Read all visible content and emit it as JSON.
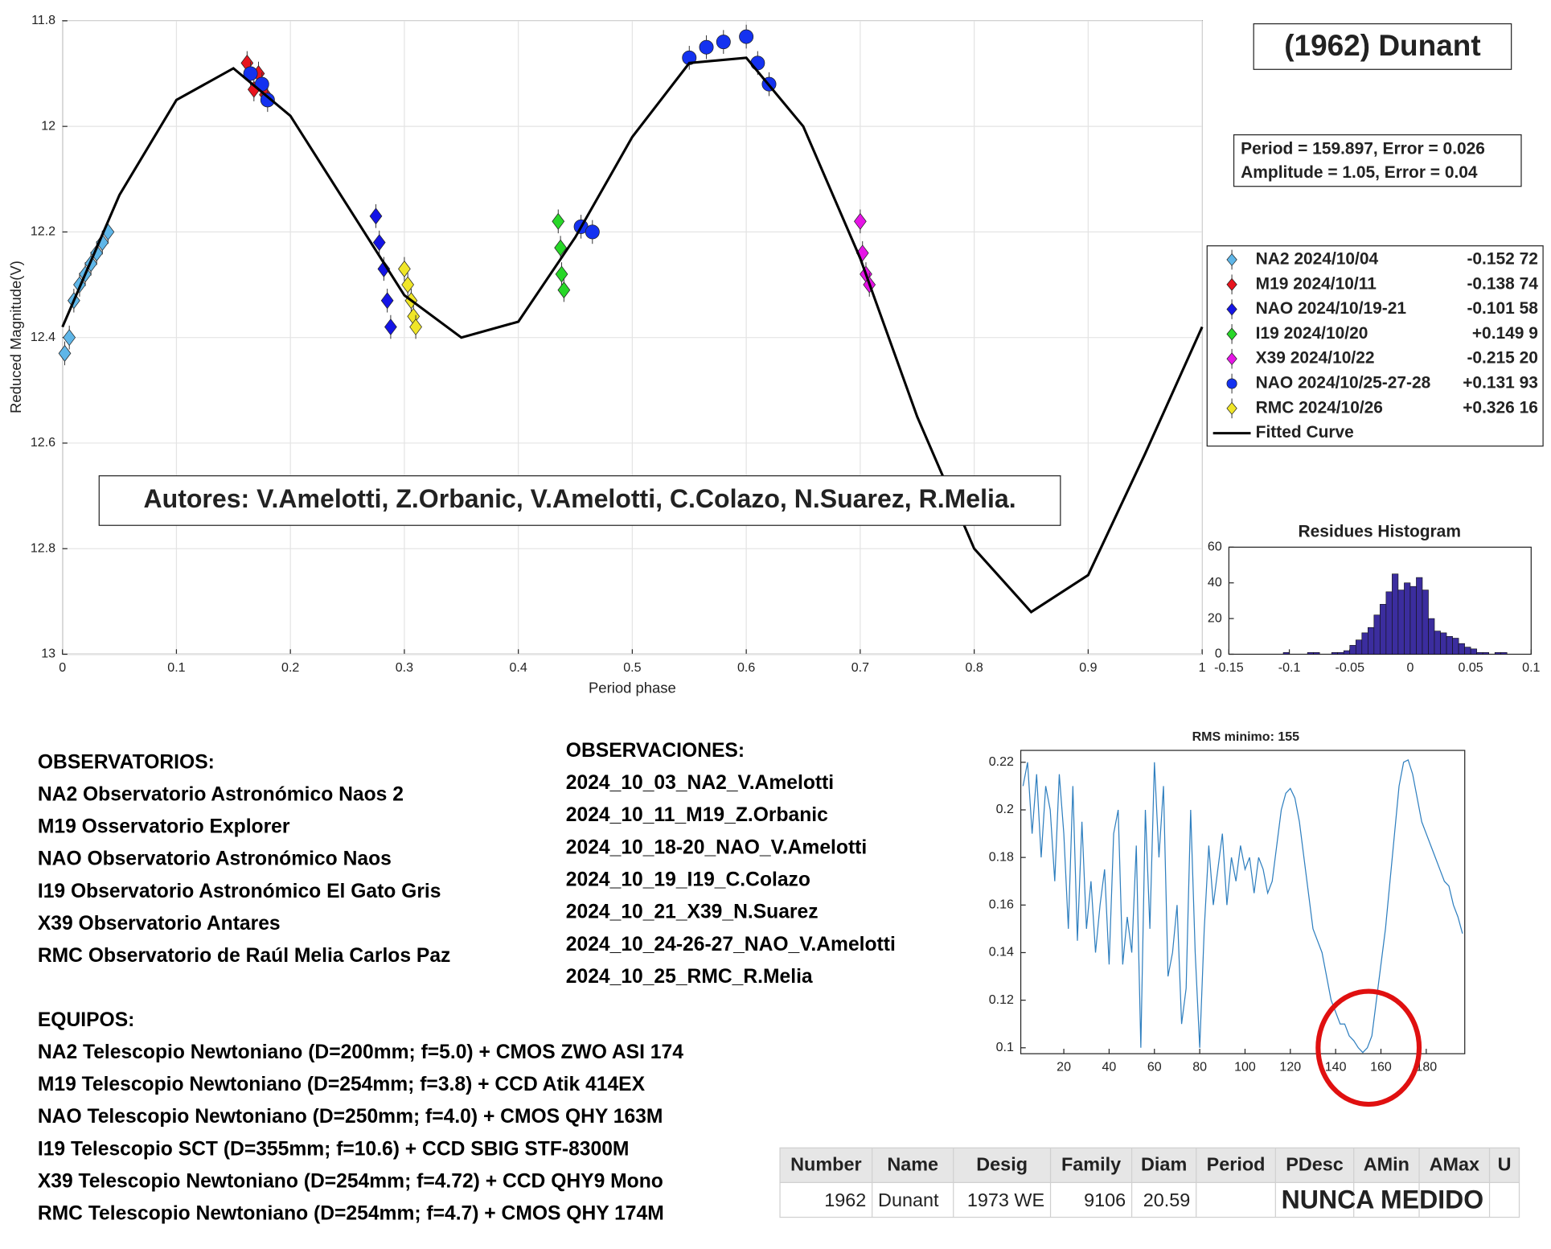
{
  "chart_data": [
    {
      "type": "scatter",
      "title": "(1962) Dunant",
      "xlabel": "Period phase",
      "ylabel": "Reduced Magnitude(V)",
      "annotations": [
        "Period =  159.897, Error = 0.026",
        "Amplitude = 1.05, Error = 0.04",
        "Autores: V.Amelotti, Z.Orbanic, V.Amelotti, C.Colazo, N.Suarez, R.Melia."
      ],
      "xlim": [
        0,
        1
      ],
      "ylim": [
        11.8,
        13
      ],
      "y_reversed": true,
      "grid": true,
      "legend": "right",
      "xticks": [
        0,
        0.1,
        0.2,
        0.3,
        0.4,
        0.5,
        0.6,
        0.7,
        0.8,
        0.9,
        1
      ],
      "yticks": [
        11.8,
        12,
        12.2,
        12.4,
        12.6,
        12.8,
        13
      ],
      "series": [
        {
          "name": "NA2 2024/10/04",
          "offset": "-0.152 72",
          "color": "#5fb6e8",
          "marker": "diamond",
          "x": [
            0.002,
            0.006,
            0.01,
            0.015,
            0.02,
            0.025,
            0.03,
            0.035,
            0.04
          ],
          "values": [
            12.43,
            12.4,
            12.33,
            12.3,
            12.28,
            12.26,
            12.24,
            12.22,
            12.2
          ]
        },
        {
          "name": "M19 2024/10/11",
          "offset": "-0.138 74",
          "color": "#e8141e",
          "marker": "diamond",
          "x": [
            0.162,
            0.168,
            0.172,
            0.178
          ],
          "values": [
            11.88,
            11.93,
            11.9,
            11.94
          ]
        },
        {
          "name": "NAO 2024/10/19-21",
          "offset": "-0.101 58",
          "color": "#1414e6",
          "marker": "diamond",
          "x": [
            0.275,
            0.278,
            0.282,
            0.285,
            0.288
          ],
          "values": [
            12.17,
            12.22,
            12.27,
            12.33,
            12.38
          ]
        },
        {
          "name": "I19 2024/10/20",
          "offset": "+0.149  9",
          "color": "#28d728",
          "marker": "diamond",
          "x": [
            0.435,
            0.437,
            0.438,
            0.44
          ],
          "values": [
            12.18,
            12.23,
            12.28,
            12.31
          ]
        },
        {
          "name": "X39 2024/10/22",
          "offset": "-0.215 20",
          "color": "#e614e6",
          "marker": "diamond",
          "x": [
            0.7,
            0.702,
            0.705,
            0.708
          ],
          "values": [
            12.18,
            12.24,
            12.28,
            12.3
          ]
        },
        {
          "name": "NAO 2024/10/25-27-28",
          "offset": "+0.131 93",
          "color": "#1432f0",
          "marker": "circle",
          "x": [
            0.165,
            0.175,
            0.18,
            0.455,
            0.465,
            0.55,
            0.565,
            0.58,
            0.6,
            0.61,
            0.62
          ],
          "values": [
            11.9,
            11.92,
            11.95,
            12.19,
            12.2,
            11.87,
            11.85,
            11.84,
            11.83,
            11.88,
            11.92
          ]
        },
        {
          "name": "RMC 2024/10/26",
          "offset": "+0.326 16",
          "color": "#f0e628",
          "marker": "diamond",
          "x": [
            0.3,
            0.303,
            0.306,
            0.308,
            0.31
          ],
          "values": [
            12.27,
            12.3,
            12.33,
            12.36,
            12.38
          ]
        },
        {
          "name": "Fitted Curve",
          "color": "#000000",
          "marker": "line",
          "x": [
            0,
            0.05,
            0.1,
            0.15,
            0.2,
            0.25,
            0.3,
            0.35,
            0.4,
            0.45,
            0.5,
            0.55,
            0.6,
            0.65,
            0.7,
            0.75,
            0.8,
            0.85,
            0.9,
            0.95,
            1
          ],
          "values": [
            12.38,
            12.13,
            11.95,
            11.89,
            11.98,
            12.15,
            12.32,
            12.4,
            12.37,
            12.21,
            12.02,
            11.88,
            11.87,
            12.0,
            12.25,
            12.55,
            12.8,
            12.92,
            12.85,
            12.62,
            12.38
          ]
        }
      ]
    },
    {
      "type": "histogram",
      "title": "Residues Histogram",
      "color": "#3b2d9e",
      "xlim": [
        -0.15,
        0.1
      ],
      "ylim": [
        0,
        60
      ],
      "xticks": [
        -0.15,
        -0.1,
        -0.05,
        0,
        0.05,
        0.1
      ],
      "yticks": [
        0,
        20,
        40,
        60
      ],
      "bins": [
        -0.105,
        -0.1,
        -0.095,
        -0.09,
        -0.085,
        -0.08,
        -0.075,
        -0.07,
        -0.065,
        -0.06,
        -0.055,
        -0.05,
        -0.045,
        -0.04,
        -0.035,
        -0.03,
        -0.025,
        -0.02,
        -0.015,
        -0.01,
        -0.005,
        0,
        0.005,
        0.01,
        0.015,
        0.02,
        0.025,
        0.03,
        0.035,
        0.04,
        0.045,
        0.05,
        0.055,
        0.06,
        0.065,
        0.07,
        0.075,
        0.08
      ],
      "counts": [
        1,
        0,
        0,
        0,
        1,
        1,
        0,
        0,
        1,
        1,
        2,
        5,
        8,
        12,
        15,
        22,
        28,
        35,
        45,
        36,
        40,
        38,
        43,
        36,
        20,
        13,
        12,
        10,
        9,
        6,
        4,
        3,
        1,
        1,
        0,
        1,
        1
      ]
    },
    {
      "type": "line",
      "title": "RMS minimo: 155",
      "color": "#2f7fbf",
      "xlim": [
        1,
        197
      ],
      "ylim": [
        0.0975,
        0.225
      ],
      "xticks": [
        20,
        40,
        60,
        80,
        100,
        120,
        140,
        160,
        180
      ],
      "yticks": [
        0.1,
        0.12,
        0.14,
        0.16,
        0.18,
        0.2,
        0.22
      ],
      "x": [
        2,
        4,
        6,
        8,
        10,
        12,
        14,
        16,
        18,
        20,
        22,
        24,
        26,
        28,
        30,
        32,
        34,
        36,
        38,
        40,
        42,
        44,
        46,
        48,
        50,
        52,
        54,
        56,
        58,
        60,
        62,
        64,
        66,
        68,
        70,
        72,
        74,
        76,
        78,
        80,
        82,
        84,
        86,
        88,
        90,
        92,
        94,
        96,
        98,
        100,
        102,
        104,
        106,
        108,
        110,
        112,
        114,
        116,
        118,
        120,
        122,
        124,
        126,
        128,
        130,
        132,
        134,
        136,
        138,
        140,
        142,
        144,
        146,
        148,
        150,
        152,
        154,
        156,
        158,
        160,
        162,
        164,
        166,
        168,
        170,
        172,
        174,
        176,
        178,
        180,
        182,
        184,
        186,
        188,
        190,
        192,
        194,
        196
      ],
      "values": [
        0.21,
        0.22,
        0.19,
        0.215,
        0.18,
        0.21,
        0.2,
        0.17,
        0.215,
        0.19,
        0.15,
        0.21,
        0.145,
        0.195,
        0.15,
        0.17,
        0.14,
        0.16,
        0.175,
        0.135,
        0.19,
        0.2,
        0.135,
        0.155,
        0.14,
        0.185,
        0.1,
        0.2,
        0.15,
        0.22,
        0.18,
        0.21,
        0.13,
        0.14,
        0.16,
        0.11,
        0.125,
        0.2,
        0.14,
        0.1,
        0.15,
        0.185,
        0.16,
        0.175,
        0.19,
        0.16,
        0.18,
        0.17,
        0.185,
        0.175,
        0.18,
        0.165,
        0.18,
        0.175,
        0.165,
        0.17,
        0.185,
        0.2,
        0.207,
        0.209,
        0.205,
        0.195,
        0.18,
        0.165,
        0.15,
        0.145,
        0.14,
        0.13,
        0.12,
        0.115,
        0.11,
        0.11,
        0.105,
        0.103,
        0.1,
        0.098,
        0.1,
        0.105,
        0.12,
        0.135,
        0.15,
        0.17,
        0.19,
        0.21,
        0.22,
        0.221,
        0.215,
        0.205,
        0.195,
        0.19,
        0.185,
        0.18,
        0.175,
        0.17,
        0.168,
        0.16,
        0.155,
        0.148
      ]
    }
  ],
  "observatorios": {
    "heading": "OBSERVATORIOS:",
    "items": [
      "NA2 Observatorio Astronómico Naos 2",
      "M19 Osservatorio Explorer",
      "NAO Observatorio Astronómico Naos",
      "I19 Observatorio Astronómico El Gato Gris",
      "X39 Observatorio Antares",
      "RMC Observatorio de Raúl Melia Carlos Paz"
    ]
  },
  "observaciones": {
    "heading": "OBSERVACIONES:",
    "items": [
      "2024_10_03_NA2_V.Amelotti",
      "2024_10_11_M19_Z.Orbanic",
      "2024_10_18-20_NAO_V.Amelotti",
      "2024_10_19_I19_C.Colazo",
      "2024_10_21_X39_N.Suarez",
      "2024_10_24-26-27_NAO_V.Amelotti",
      "2024_10_25_RMC_R.Melia"
    ]
  },
  "equipos": {
    "heading": "EQUIPOS:",
    "items": [
      "NA2 Telescopio Newtoniano (D=200mm; f=5.0) + CMOS ZWO ASI 174",
      "M19 Telescopio Newtoniano (D=254mm; f=3.8) + CCD Atik 414EX",
      "NAO Telescopio Newtoniano (D=250mm; f=4.0) + CMOS QHY 163M",
      "I19 Telescopio SCT (D=355mm; f=10.6) + CCD SBIG STF-8300M",
      "X39 Telescopio Newtoniano (D=254mm; f=4.72) + CCD QHY9 Mono",
      "RMC Telescopio Newtoniano (D=254mm; f=4.7) + CMOS QHY 174M"
    ]
  },
  "table": {
    "header": [
      "Number",
      "Name",
      "Desig",
      "Family",
      "Diam",
      "Period",
      "PDesc",
      "AMin",
      "AMax",
      "U"
    ],
    "rows": [
      [
        "1962",
        "Dunant",
        "1973 WE",
        "9106",
        "20.59"
      ]
    ],
    "note": "NUNCA MEDIDO"
  }
}
